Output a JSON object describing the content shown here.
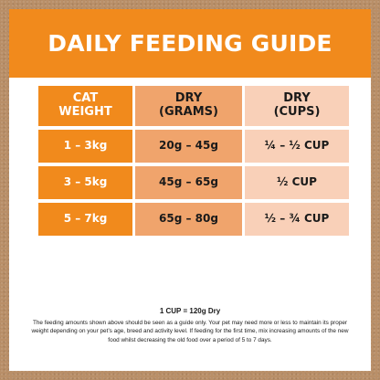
{
  "header": {
    "title": "DAILY FEEDING GUIDE"
  },
  "table": {
    "columns": [
      "CAT\nWEIGHT",
      "DRY\n(GRAMS)",
      "DRY\n(CUPS)"
    ],
    "rows": [
      {
        "weight": "1 – 3kg",
        "grams": "20g – 45g",
        "cups": "¼ – ½ CUP"
      },
      {
        "weight": "3 – 5kg",
        "grams": "45g – 65g",
        "cups": "½ CUP"
      },
      {
        "weight": "5 – 7kg",
        "grams": "65g – 80g",
        "cups": "½ – ¾ CUP"
      }
    ]
  },
  "footer": {
    "conversion": "1 CUP = 120g Dry",
    "disclaimer": "The feeding amounts shown above should be seen as a guide only. Your pet may need more or less to maintain its proper weight depending on your pet’s age, breed and activity level. If feeding for the first time, mix increasing amounts of the new food whilst decreasing the old food over a period of 5 to 7 days."
  },
  "colors": {
    "accent_orange": "#f18a1c",
    "grams_column": "#f0a46c",
    "cups_column": "#f9d0b8",
    "background_kraft": "#b98f68"
  }
}
